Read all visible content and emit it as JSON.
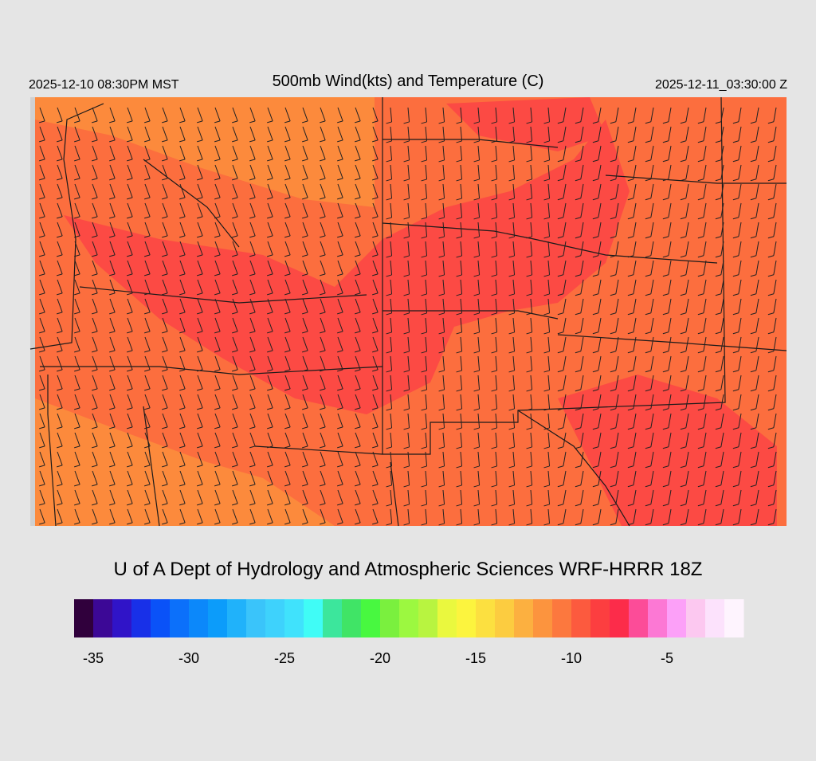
{
  "header": {
    "left": "2025-12-10 08:30PM MST",
    "title": "500mb Wind(kts) and Temperature (C)",
    "right": "2025-12-11_03:30:00 Z"
  },
  "credit": "U of A Dept of Hydrology and Atmospheric Sciences WRF-HRRR 18Z",
  "colorbar": {
    "range": [
      -36,
      -1
    ],
    "ticks": [
      -35,
      -30,
      -25,
      -20,
      -15,
      -10,
      -5
    ],
    "colors": [
      "#30003c",
      "#3c0896",
      "#3014c8",
      "#1830e8",
      "#0a52f8",
      "#0c70fa",
      "#0c88fa",
      "#0c9cfa",
      "#20b2fa",
      "#3ac4fa",
      "#3ed2fc",
      "#40e2fc",
      "#40fcf6",
      "#3ce69c",
      "#40e466",
      "#48f840",
      "#7af03e",
      "#9cf840",
      "#b8f440",
      "#eaf83e",
      "#fcf43e",
      "#fce040",
      "#fccc40",
      "#fcb040",
      "#fc943e",
      "#fc783e",
      "#fc5a3e",
      "#fc3e40",
      "#fc2c4a",
      "#fc4c98",
      "#fc78d4",
      "#fca0f8",
      "#fcc8f0",
      "#fce2fc",
      "#fef4fe"
    ]
  }
}
